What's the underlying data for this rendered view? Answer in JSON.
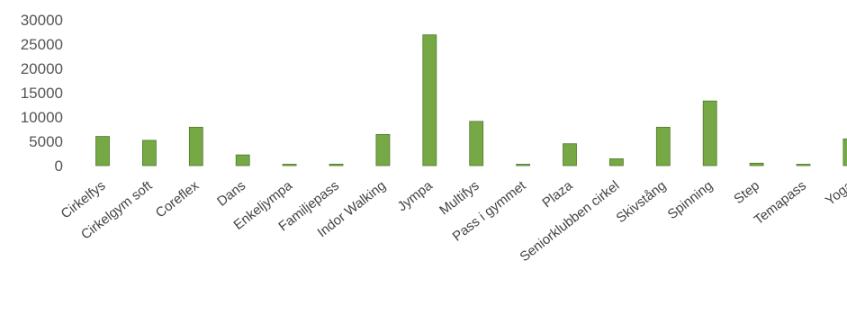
{
  "chart_data": {
    "type": "bar",
    "title": "",
    "xlabel": "",
    "ylabel": "",
    "ylim": [
      0,
      30000
    ],
    "yticks": [
      0,
      5000,
      10000,
      15000,
      20000,
      25000,
      30000
    ],
    "yticks_text": [
      "0",
      "5000",
      "10000",
      "15000",
      "20000",
      "25000",
      "30000"
    ],
    "grid": false,
    "legend": "none",
    "bar_color": "#76a846",
    "categories": [
      "Cirkelfys",
      "Cirkelgym soft",
      "Coreflex",
      "Dans",
      "Enkeljympa",
      "Familjepass",
      "Indor Walking",
      "Jympa",
      "Multifys",
      "Pass i gymmet",
      "Plaza",
      "Seniorklubben cirkel",
      "Skivstång",
      "Spinning",
      "Step",
      "Temapass",
      "Yoga"
    ],
    "values": [
      6000,
      5200,
      7900,
      2200,
      200,
      300,
      6400,
      26900,
      9100,
      100,
      4500,
      1400,
      7900,
      13300,
      500,
      100,
      5500
    ]
  }
}
